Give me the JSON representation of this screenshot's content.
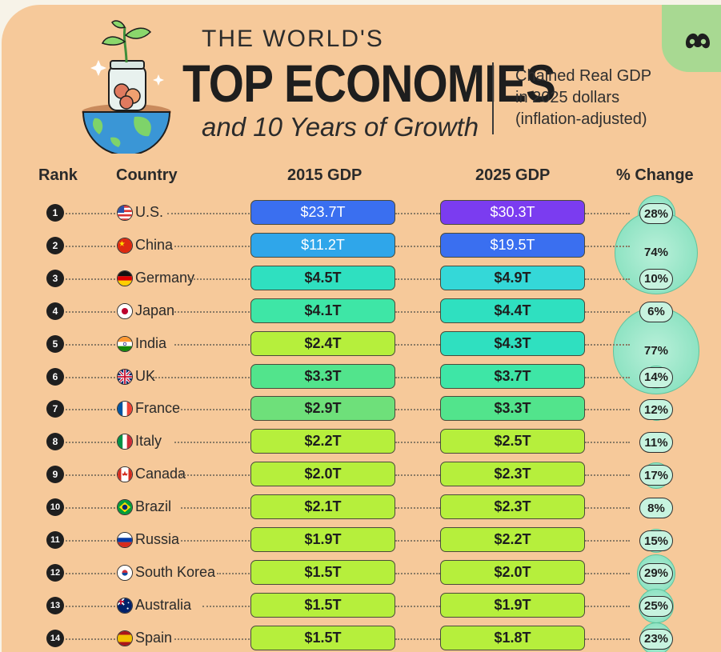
{
  "header": {
    "line1": "THE WORLD'S",
    "line2": "TOP ECONOMIES",
    "line3": "and 10 Years of Growth",
    "subtitle1": "Chained Real GDP",
    "subtitle2": "in 2025 dollars",
    "subtitle3": "(inflation-adjusted)"
  },
  "colors": {
    "background": "#f6c99a",
    "accent_green": "#a8d992",
    "text": "#1e1e1e"
  },
  "chart_data": {
    "type": "table",
    "title": "THE WORLD'S TOP ECONOMIES and 10 Years of Growth",
    "subtitle": "Chained Real GDP in 2025 dollars (inflation-adjusted)",
    "columns": [
      "Rank",
      "Country",
      "2015 GDP",
      "2025 GDP",
      "% Change"
    ],
    "rows": [
      {
        "rank": "1",
        "country": "U.S.",
        "gdp2015": "$23.7T",
        "gdp2025": "$30.3T",
        "v2015": 23.7,
        "v2025": 30.3,
        "change": "28%",
        "change_value": 28,
        "flag": "us"
      },
      {
        "rank": "2",
        "country": "China",
        "gdp2015": "$11.2T",
        "gdp2025": "$19.5T",
        "v2015": 11.2,
        "v2025": 19.5,
        "change": "74%",
        "change_value": 74,
        "flag": "cn"
      },
      {
        "rank": "3",
        "country": "Germany",
        "gdp2015": "$4.5T",
        "gdp2025": "$4.9T",
        "v2015": 4.5,
        "v2025": 4.9,
        "change": "10%",
        "change_value": 10,
        "flag": "de"
      },
      {
        "rank": "4",
        "country": "Japan",
        "gdp2015": "$4.1T",
        "gdp2025": "$4.4T",
        "v2015": 4.1,
        "v2025": 4.4,
        "change": "6%",
        "change_value": 6,
        "flag": "jp"
      },
      {
        "rank": "5",
        "country": "India",
        "gdp2015": "$2.4T",
        "gdp2025": "$4.3T",
        "v2015": 2.4,
        "v2025": 4.3,
        "change": "77%",
        "change_value": 77,
        "flag": "in"
      },
      {
        "rank": "6",
        "country": "UK",
        "gdp2015": "$3.3T",
        "gdp2025": "$3.7T",
        "v2015": 3.3,
        "v2025": 3.7,
        "change": "14%",
        "change_value": 14,
        "flag": "uk"
      },
      {
        "rank": "7",
        "country": "France",
        "gdp2015": "$2.9T",
        "gdp2025": "$3.3T",
        "v2015": 2.9,
        "v2025": 3.3,
        "change": "12%",
        "change_value": 12,
        "flag": "fr"
      },
      {
        "rank": "8",
        "country": "Italy",
        "gdp2015": "$2.2T",
        "gdp2025": "$2.5T",
        "v2015": 2.2,
        "v2025": 2.5,
        "change": "11%",
        "change_value": 11,
        "flag": "it"
      },
      {
        "rank": "9",
        "country": "Canada",
        "gdp2015": "$2.0T",
        "gdp2025": "$2.3T",
        "v2015": 2.0,
        "v2025": 2.3,
        "change": "17%",
        "change_value": 17,
        "flag": "ca"
      },
      {
        "rank": "10",
        "country": "Brazil",
        "gdp2015": "$2.1T",
        "gdp2025": "$2.3T",
        "v2015": 2.1,
        "v2025": 2.3,
        "change": "8%",
        "change_value": 8,
        "flag": "br"
      },
      {
        "rank": "11",
        "country": "Russia",
        "gdp2015": "$1.9T",
        "gdp2025": "$2.2T",
        "v2015": 1.9,
        "v2025": 2.2,
        "change": "15%",
        "change_value": 15,
        "flag": "ru"
      },
      {
        "rank": "12",
        "country": "South Korea",
        "gdp2015": "$1.5T",
        "gdp2025": "$2.0T",
        "v2015": 1.5,
        "v2025": 2.0,
        "change": "29%",
        "change_value": 29,
        "flag": "kr"
      },
      {
        "rank": "13",
        "country": "Australia",
        "gdp2015": "$1.5T",
        "gdp2025": "$1.9T",
        "v2015": 1.5,
        "v2025": 1.9,
        "change": "25%",
        "change_value": 25,
        "flag": "au"
      },
      {
        "rank": "14",
        "country": "Spain",
        "gdp2015": "$1.5T",
        "gdp2025": "$1.8T",
        "v2015": 1.5,
        "v2025": 1.8,
        "change": "23%",
        "change_value": 23,
        "flag": "es"
      }
    ]
  }
}
